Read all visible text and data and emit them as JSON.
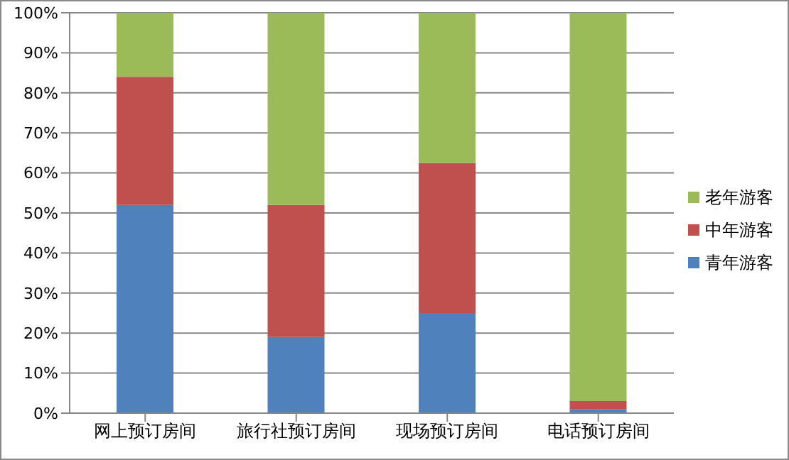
{
  "chart_data": {
    "type": "bar",
    "stacked": true,
    "categories": [
      "网上预订房间",
      "旅行社预订房间",
      "现场预订房间",
      "电话预订房间"
    ],
    "series": [
      {
        "name": "青年游客",
        "color": "#4f81bd",
        "values": [
          52,
          19,
          25,
          1
        ]
      },
      {
        "name": "中年游客",
        "color": "#c0504d",
        "values": [
          32,
          33,
          37.5,
          2
        ]
      },
      {
        "name": "老年游客",
        "color": "#9bbb59",
        "values": [
          16,
          48,
          37.5,
          97
        ]
      }
    ],
    "ylim": [
      0,
      100
    ],
    "yticks": [
      {
        "value": 0,
        "label": "0%"
      },
      {
        "value": 10,
        "label": "10%"
      },
      {
        "value": 20,
        "label": "20%"
      },
      {
        "value": 30,
        "label": "30%"
      },
      {
        "value": 40,
        "label": "40%"
      },
      {
        "value": 50,
        "label": "50%"
      },
      {
        "value": 60,
        "label": "60%"
      },
      {
        "value": 70,
        "label": "70%"
      },
      {
        "value": 80,
        "label": "80%"
      },
      {
        "value": 90,
        "label": "90%"
      },
      {
        "value": 100,
        "label": "100%"
      }
    ],
    "grid": "y",
    "legend": "right"
  }
}
